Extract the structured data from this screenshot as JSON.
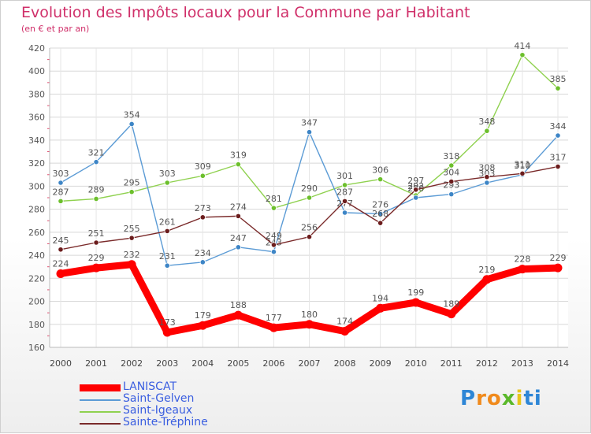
{
  "chart_data": {
    "type": "line",
    "title": "Evolution des Impôts locaux pour la Commune par Habitant",
    "subtitle": "(en € et par an)",
    "xlabel": "",
    "ylabel": "",
    "ylim": [
      160,
      420
    ],
    "yticks": [
      160,
      180,
      200,
      220,
      240,
      260,
      280,
      300,
      320,
      340,
      360,
      380,
      400,
      420
    ],
    "grid": true,
    "categories": [
      "2000",
      "2001",
      "2002",
      "2003",
      "2004",
      "2005",
      "2006",
      "2007",
      "2008",
      "2009",
      "2010",
      "2011",
      "2012",
      "2013",
      "2014"
    ],
    "series": [
      {
        "name": "Saint-Igeaux",
        "color": "#8fd14f",
        "marker": "#6cbf2c",
        "values": [
          287,
          289,
          295,
          303,
          309,
          319,
          281,
          290,
          301,
          306,
          292,
          318,
          348,
          414,
          385
        ],
        "labels": [
          "287",
          "289",
          "295",
          "303",
          "309",
          "319",
          "281",
          "290",
          "301",
          "306",
          "292",
          "318",
          "348",
          "414",
          "385"
        ]
      },
      {
        "name": "Saint-Gelven",
        "color": "#5b9bd5",
        "marker": "#3d85c6",
        "values": [
          303,
          321,
          354,
          231,
          234,
          247,
          243,
          347,
          277,
          276,
          290,
          293,
          303,
          310,
          344
        ],
        "labels": [
          "303",
          "321",
          "354",
          "231",
          "234",
          "247",
          "243",
          "347",
          "277",
          "276",
          "290",
          "293",
          "303",
          "310",
          "344"
        ]
      },
      {
        "name": "Sainte-Tréphine",
        "color": "#7a2a2a",
        "marker": "#6b1c1c",
        "values": [
          245,
          251,
          255,
          261,
          273,
          274,
          249,
          256,
          287,
          268,
          297,
          304,
          308,
          311,
          317
        ],
        "labels": [
          "245",
          "251",
          "255",
          "261",
          "273",
          "274",
          "249",
          "256",
          "287",
          "268",
          "297",
          "304",
          "308",
          "311",
          "317"
        ]
      },
      {
        "name": "LANISCAT",
        "color": "#ff0000",
        "marker": "#ff0000",
        "values": [
          224,
          229,
          232,
          173,
          179,
          188,
          177,
          180,
          174,
          194,
          199,
          189,
          219,
          228,
          229
        ],
        "labels": [
          "224",
          "229",
          "232",
          "173",
          "179",
          "188",
          "177",
          "180",
          "174",
          "194",
          "199",
          "189",
          "219",
          "228",
          "229"
        ]
      }
    ],
    "legend_order": [
      "LANISCAT",
      "Saint-Gelven",
      "Saint-Igeaux",
      "Sainte-Tréphine"
    ]
  },
  "logo": {
    "letters": [
      "P",
      "r",
      "o",
      "x",
      "i",
      "t",
      "i"
    ],
    "colors": [
      "#2e86d6",
      "#f08a1c",
      "#f08a1c",
      "#5ab82a",
      "#e8c51c",
      "#2e86d6",
      "#2e86d6"
    ]
  }
}
